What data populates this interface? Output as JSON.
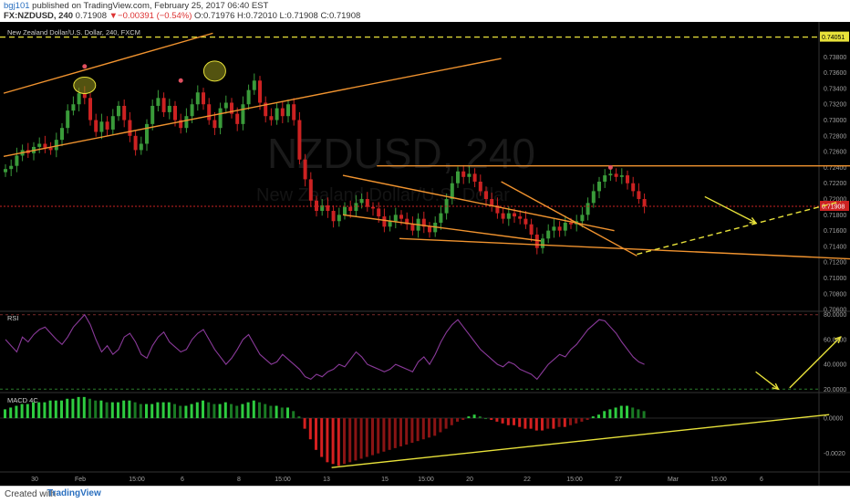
{
  "header": {
    "user": "bgj101",
    "published_text": "published on TradingView.com, February 25, 2017 06:40 EST",
    "symbol": "FX:NZDUSD, 240",
    "last": "0.71908",
    "change": "▼−0.00391 (−0.54%)",
    "o": "O:0.71976",
    "h": "H:0.72010",
    "l": "L:0.71908",
    "c": "C:0.71908"
  },
  "footer": {
    "created": "Created with",
    "brand": "TradingView"
  },
  "colors": {
    "bg": "#000000",
    "up": "#3a9b3a",
    "down": "#cc2222",
    "orange": "#f0932f",
    "yellow": "#e8e23a",
    "rsi": "#8a3a9a"
  },
  "chart_data": [
    {
      "type": "candlestick",
      "title": "New Zealand Dollar/U.S. Dollar, 240, FXCM",
      "watermark": "NZDUSD, 240",
      "watermark_sub": "New Zealand Dollar/U.S. Dollar",
      "ylim": [
        0.7059,
        0.7422
      ],
      "y_ticks": [
        "0.73800",
        "0.73600",
        "0.73400",
        "0.73200",
        "0.73000",
        "0.72800",
        "0.72600",
        "0.72400",
        "0.72200",
        "0.72000",
        "0.71800",
        "0.71600",
        "0.71400",
        "0.71200",
        "0.71000",
        "0.70800",
        "0.70600"
      ],
      "price_labels": {
        "top": "0.74051",
        "current": "0.71908"
      },
      "x_ticks": [
        "30",
        "Feb",
        "15:00",
        "6",
        "8",
        "15:00",
        "13",
        "15",
        "15:00",
        "20",
        "22",
        "15:00",
        "27",
        "Mar",
        "15:00",
        "6"
      ],
      "close": [
        0.7238,
        0.7242,
        0.7255,
        0.7262,
        0.7258,
        0.7266,
        0.727,
        0.7265,
        0.7262,
        0.7275,
        0.729,
        0.7312,
        0.732,
        0.7334,
        0.7328,
        0.73,
        0.7285,
        0.7298,
        0.7288,
        0.7305,
        0.7318,
        0.73,
        0.728,
        0.7262,
        0.727,
        0.7295,
        0.7318,
        0.7328,
        0.731,
        0.7318,
        0.73,
        0.729,
        0.7305,
        0.732,
        0.7335,
        0.732,
        0.73,
        0.729,
        0.7315,
        0.7322,
        0.7308,
        0.7295,
        0.732,
        0.7338,
        0.735,
        0.7322,
        0.7305,
        0.73,
        0.7315,
        0.7305,
        0.732,
        0.73,
        0.725,
        0.7225,
        0.7198,
        0.7185,
        0.7192,
        0.7185,
        0.7172,
        0.718,
        0.719,
        0.7185,
        0.7195,
        0.72,
        0.719,
        0.7188,
        0.7178,
        0.7165,
        0.7172,
        0.718,
        0.7175,
        0.7168,
        0.716,
        0.7175,
        0.7165,
        0.7158,
        0.717,
        0.7182,
        0.72,
        0.722,
        0.7235,
        0.7228,
        0.7232,
        0.7222,
        0.721,
        0.72,
        0.7192,
        0.7182,
        0.7175,
        0.7182,
        0.7178,
        0.7175,
        0.7168,
        0.7155,
        0.7138,
        0.715,
        0.716,
        0.7165,
        0.716,
        0.717,
        0.7168,
        0.7172,
        0.718,
        0.7195,
        0.721,
        0.7222,
        0.723,
        0.7232,
        0.7228,
        0.723,
        0.722,
        0.721,
        0.72,
        0.7191
      ],
      "annotations": [
        {
          "type": "trend_line",
          "color": "orange",
          "from": [
            0,
            0.7254
          ],
          "to": [
            88,
            0.7378
          ]
        },
        {
          "type": "trend_line",
          "color": "orange",
          "from": [
            0,
            0.7334
          ],
          "to": [
            37,
            0.741
          ]
        },
        {
          "type": "horizontal_line",
          "color": "orange",
          "value": 0.7242,
          "from_bar": 66,
          "to_bar": 156
        },
        {
          "type": "trend_line",
          "color": "orange",
          "from": [
            60,
            0.723
          ],
          "to": [
            108,
            0.716
          ]
        },
        {
          "type": "trend_line",
          "color": "orange",
          "from": [
            60,
            0.718
          ],
          "to": [
            95,
            0.7147
          ]
        },
        {
          "type": "trend_line",
          "color": "orange",
          "from": [
            70,
            0.715
          ],
          "to": [
            163,
            0.712
          ]
        },
        {
          "type": "trend_line",
          "color": "orange",
          "from": [
            88,
            0.7222
          ],
          "to": [
            112,
            0.7128
          ]
        },
        {
          "type": "dashed_line",
          "color": "yellow",
          "from": [
            112,
            0.713
          ],
          "to": [
            148,
            0.7197
          ]
        },
        {
          "type": "arrow",
          "color": "yellow",
          "from": [
            124,
            0.7203
          ],
          "to": [
            133,
            0.717
          ]
        },
        {
          "type": "horizontal_dashed",
          "color": "yellow",
          "value": 0.74051
        }
      ]
    },
    {
      "type": "line",
      "title": "RSI",
      "ylim": [
        18,
        82
      ],
      "y_ticks": [
        "80.0000",
        "60.0000",
        "40.0000",
        "20.0000"
      ],
      "values": [
        60,
        55,
        50,
        62,
        58,
        64,
        68,
        70,
        65,
        60,
        56,
        62,
        70,
        75,
        80,
        72,
        60,
        50,
        55,
        48,
        52,
        62,
        65,
        58,
        48,
        45,
        55,
        62,
        66,
        58,
        54,
        50,
        52,
        60,
        65,
        68,
        60,
        52,
        46,
        40,
        45,
        52,
        60,
        64,
        56,
        48,
        44,
        40,
        42,
        48,
        44,
        40,
        36,
        30,
        28,
        32,
        30,
        34,
        36,
        40,
        38,
        44,
        50,
        46,
        40,
        38,
        36,
        34,
        36,
        40,
        38,
        36,
        34,
        42,
        46,
        40,
        48,
        58,
        66,
        72,
        76,
        70,
        64,
        58,
        52,
        48,
        44,
        40,
        38,
        42,
        40,
        36,
        34,
        32,
        28,
        34,
        40,
        44,
        48,
        46,
        52,
        56,
        62,
        68,
        72,
        76,
        75,
        70,
        65,
        58,
        52,
        46,
        42,
        40
      ],
      "annotations": [
        {
          "type": "arrow",
          "color": "yellow",
          "from": [
            133,
            34
          ],
          "to": [
            137,
            20
          ]
        },
        {
          "type": "arrow",
          "color": "yellow",
          "from": [
            139,
            21
          ],
          "to": [
            148,
            62
          ]
        }
      ]
    },
    {
      "type": "bar",
      "title": "MACD 4C",
      "ylim": [
        -0.003,
        0.0014
      ],
      "y_ticks": [
        "0.0000",
        "-0.0020"
      ],
      "values": [
        0.0005,
        0.0006,
        0.0007,
        0.0008,
        0.0008,
        0.0009,
        0.0009,
        0.0009,
        0.001,
        0.001,
        0.001,
        0.0011,
        0.0011,
        0.0012,
        0.0012,
        0.0011,
        0.001,
        0.001,
        0.0009,
        0.0009,
        0.0009,
        0.001,
        0.001,
        0.0009,
        0.0008,
        0.0008,
        0.0008,
        0.0009,
        0.0009,
        0.0009,
        0.0008,
        0.0007,
        0.0007,
        0.0008,
        0.0009,
        0.001,
        0.0009,
        0.0008,
        0.0008,
        0.0009,
        0.0008,
        0.0007,
        0.0008,
        0.0009,
        0.001,
        0.0009,
        0.0008,
        0.0007,
        0.0007,
        0.0006,
        0.0006,
        0.0004,
        0.0001,
        -0.0006,
        -0.0012,
        -0.0018,
        -0.0022,
        -0.0025,
        -0.0026,
        -0.0027,
        -0.0026,
        -0.0025,
        -0.0024,
        -0.0023,
        -0.0022,
        -0.0021,
        -0.002,
        -0.0019,
        -0.0018,
        -0.0017,
        -0.0016,
        -0.0015,
        -0.0014,
        -0.0013,
        -0.0012,
        -0.0011,
        -0.001,
        -0.0008,
        -0.0006,
        -0.0004,
        -0.0002,
        -0.0001,
        0.0001,
        0.0002,
        0.0001,
        0.0,
        -0.0001,
        -0.0002,
        -0.0003,
        -0.0004,
        -0.0004,
        -0.0005,
        -0.0006,
        -0.0006,
        -0.0007,
        -0.0007,
        -0.0006,
        -0.0006,
        -0.0005,
        -0.0005,
        -0.0004,
        -0.0003,
        -0.0002,
        -0.0001,
        0.0001,
        0.0002,
        0.0004,
        0.0005,
        0.0006,
        0.0007,
        0.0007,
        0.0006,
        0.0005,
        0.0004
      ],
      "annotations": [
        {
          "type": "trend_line",
          "color": "yellow",
          "from": [
            58,
            -0.0028
          ],
          "to": [
            146,
            0.0002
          ]
        }
      ]
    }
  ]
}
